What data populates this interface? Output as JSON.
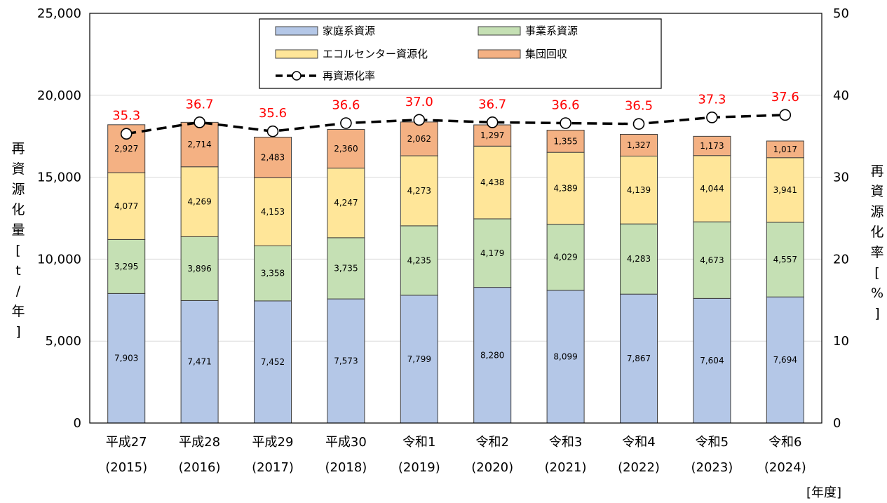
{
  "chart_data": {
    "type": "bar",
    "categories": [
      [
        "平成27",
        "(2015)"
      ],
      [
        "平成28",
        "(2016)"
      ],
      [
        "平成29",
        "(2017)"
      ],
      [
        "平成30",
        "(2018)"
      ],
      [
        "令和1",
        "(2019)"
      ],
      [
        "令和2",
        "(2020)"
      ],
      [
        "令和3",
        "(2021)"
      ],
      [
        "令和4",
        "(2022)"
      ],
      [
        "令和5",
        "(2023)"
      ],
      [
        "令和6",
        "(2024)"
      ]
    ],
    "series": [
      {
        "name": "家庭系資源",
        "type": "bar",
        "color": "#b4c7e7",
        "values": [
          7903,
          7471,
          7452,
          7573,
          7799,
          8280,
          8099,
          7867,
          7604,
          7694
        ]
      },
      {
        "name": "事業系資源",
        "type": "bar",
        "color": "#c5e0b4",
        "values": [
          3295,
          3896,
          3358,
          3735,
          4235,
          4179,
          4029,
          4283,
          4673,
          4557
        ]
      },
      {
        "name": "エコルセンター資源化",
        "type": "bar",
        "color": "#ffe699",
        "values": [
          4077,
          4269,
          4153,
          4247,
          4273,
          4438,
          4389,
          4139,
          4044,
          3941
        ]
      },
      {
        "name": "集団回収",
        "type": "bar",
        "color": "#f4b183",
        "values": [
          2927,
          2714,
          2483,
          2360,
          2062,
          1297,
          1355,
          1327,
          1173,
          1017
        ]
      },
      {
        "name": "再資源化率",
        "type": "line",
        "axis": "right",
        "color": "#000000",
        "values": [
          35.3,
          36.7,
          35.6,
          36.6,
          37.0,
          36.7,
          36.6,
          36.5,
          37.3,
          37.6
        ]
      }
    ],
    "value_labels": [
      [
        "7,903",
        "7,471",
        "7,452",
        "7,573",
        "7,799",
        "8,280",
        "8,099",
        "7,867",
        "7,604",
        "7,694"
      ],
      [
        "3,295",
        "3,896",
        "3,358",
        "3,735",
        "4,235",
        "4,179",
        "4,029",
        "4,283",
        "4,673",
        "4,557"
      ],
      [
        "4,077",
        "4,269",
        "4,153",
        "4,247",
        "4,273",
        "4,438",
        "4,389",
        "4,139",
        "4,044",
        "3,941"
      ],
      [
        "2,927",
        "2,714",
        "2,483",
        "2,360",
        "2,062",
        "1,297",
        "1,355",
        "1,327",
        "1,173",
        "1,017"
      ],
      [
        "35.3",
        "36.7",
        "35.6",
        "36.6",
        "37.0",
        "36.7",
        "36.6",
        "36.5",
        "37.3",
        "37.6"
      ]
    ],
    "ylabel_left": "再資源化量[t/年]",
    "ylabel_right": "再資源化率[%]",
    "xunit": "[年度]",
    "ylim_left": [
      0,
      25000
    ],
    "ylim_right": [
      0,
      50
    ],
    "yticks_left": [
      "0",
      "5,000",
      "10,000",
      "15,000",
      "20,000",
      "25,000"
    ],
    "yticks_right": [
      "0",
      "10",
      "20",
      "30",
      "40",
      "50"
    ],
    "grid": true,
    "legend": "top-center, inside plot area",
    "rate_label_color": "#ff0000"
  }
}
